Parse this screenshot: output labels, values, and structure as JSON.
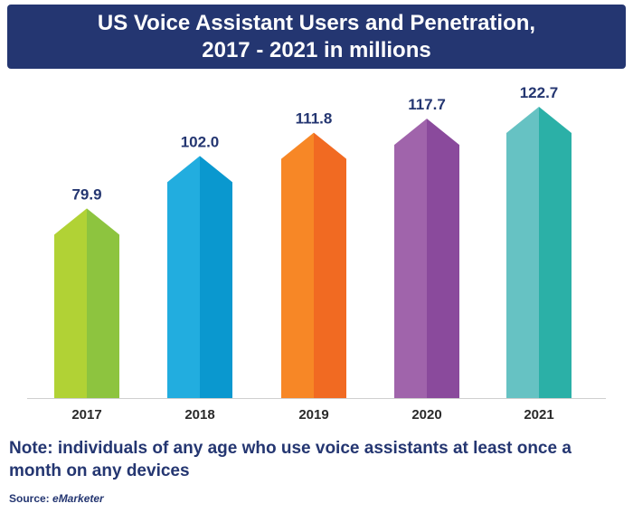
{
  "header": {
    "title_line1": "US Voice Assistant Users and Penetration,",
    "title_line2": "2017 - 2021 in millions"
  },
  "chart_data": {
    "type": "bar",
    "title": "US Voice Assistant Users and Penetration, 2017 - 2021 in millions",
    "categories": [
      "2017",
      "2018",
      "2019",
      "2020",
      "2021"
    ],
    "values": [
      79.9,
      102.0,
      111.8,
      117.7,
      122.7
    ],
    "value_labels": [
      "79.9",
      "102.0",
      "111.8",
      "117.7",
      "122.7"
    ],
    "ylim": [
      0,
      122.7
    ],
    "grid": false,
    "legend": "none",
    "colors": [
      {
        "light": "#b1d235",
        "dark": "#8dc43f"
      },
      {
        "light": "#22addf",
        "dark": "#0a98cf"
      },
      {
        "light": "#f78726",
        "dark": "#f16a22"
      },
      {
        "light": "#a064ab",
        "dark": "#8a4a9c"
      },
      {
        "light": "#66c2c3",
        "dark": "#2bb0a7"
      }
    ],
    "label_color": "#243671"
  },
  "footer": {
    "note": "Note: individuals of any age who use voice assistants at least once a month on any devices",
    "source_label": "Source: ",
    "source_name": "eMarketer"
  }
}
